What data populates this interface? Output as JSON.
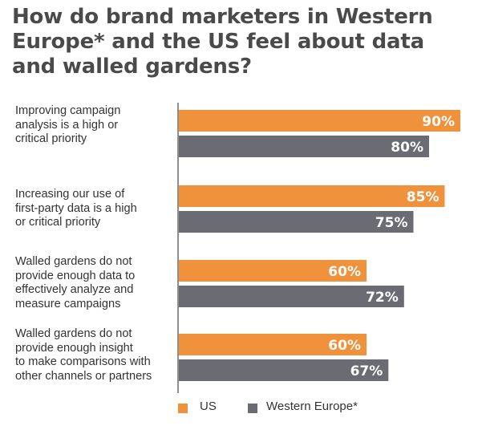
{
  "chart_data": {
    "type": "bar",
    "orientation": "horizontal",
    "title": "How do brand marketers in Western Europe* and the US feel about data and walled gardens?",
    "categories": [
      "Improving campaign analysis is a high or critical priority",
      "Increasing our use of first-party data is a high or critical priority",
      "Walled gardens do not provide enough data to effectively analyze and measure campaigns",
      "Walled gardens do not provide enough insight to make comparisons with other channels or partners"
    ],
    "category_lines": [
      [
        "Improving campaign",
        "analysis is a high or",
        "critical priority"
      ],
      [
        "Increasing our use of",
        "first-party data is a high",
        "or critical priority"
      ],
      [
        "Walled gardens do not",
        "provide enough data to",
        "effectively analyze and",
        "measure campaigns"
      ],
      [
        "Walled gardens do not",
        "provide enough insight",
        "to make comparisons with",
        "other channels or partners"
      ]
    ],
    "series": [
      {
        "name": "US",
        "color": "#f0913c",
        "values": [
          90,
          85,
          60,
          60
        ],
        "labels": [
          "90%",
          "85%",
          "60%",
          "60%"
        ]
      },
      {
        "name": "Western Europe*",
        "color": "#6b6b73",
        "values": [
          80,
          75,
          72,
          67
        ],
        "labels": [
          "80%",
          "75%",
          "72%",
          "67%"
        ]
      }
    ],
    "xlim": [
      0,
      100
    ],
    "grid": false,
    "legend_position": "bottom"
  }
}
